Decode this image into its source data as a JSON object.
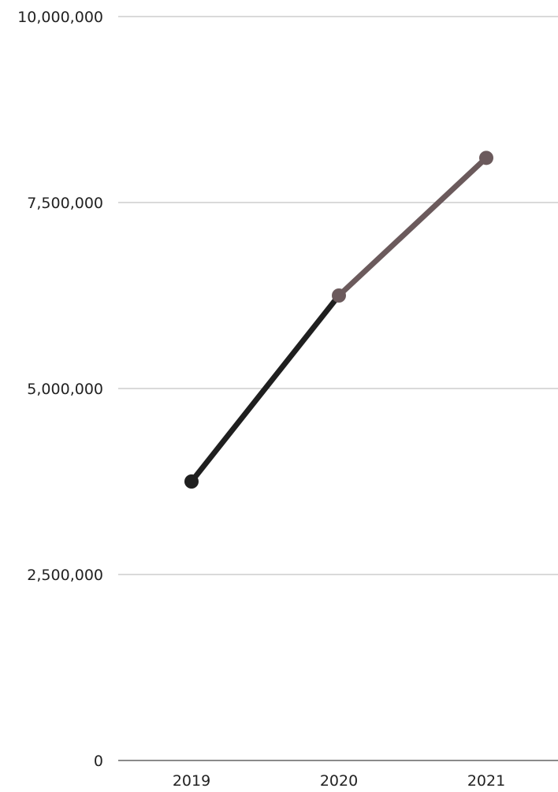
{
  "chart_data": {
    "type": "line",
    "title": "",
    "xlabel": "",
    "ylabel": "",
    "categories": [
      "2019",
      "2020",
      "2021"
    ],
    "ylim": [
      0,
      10000000
    ],
    "y_ticks": [
      0,
      2500000,
      5000000,
      7500000,
      10000000
    ],
    "y_tick_labels": [
      "0",
      "2,500,000",
      "5,000,000",
      "7,500,000",
      "10,000,000"
    ],
    "grid": "horizontal",
    "legend": "none",
    "series": [
      {
        "values": [
          3750000,
          6250000,
          8100000
        ],
        "segment_colors": [
          "#1f1f1f",
          "#6b5a5c"
        ],
        "point_colors": [
          "#1f1f1f",
          "#6b5a5c",
          "#6b5a5c"
        ]
      }
    ],
    "colors": {
      "grid": "#c4c4c4",
      "baseline": "#8a8a8a",
      "text": "#222222"
    }
  }
}
